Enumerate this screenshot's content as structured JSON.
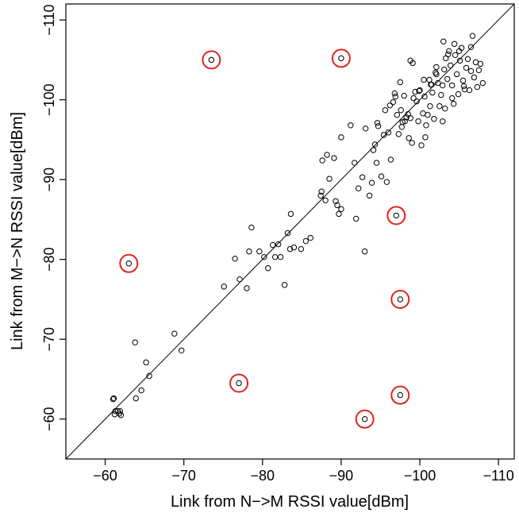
{
  "chart_data": {
    "type": "scatter",
    "title": "",
    "xlabel": "Link from N−>M RSSI value[dBm]",
    "ylabel": "Link from M−>N RSSI value[dBm]",
    "xlim": [
      -55,
      -112
    ],
    "ylim": [
      -55,
      -112
    ],
    "x_ticks": [
      {
        "value": -60,
        "label": "−60"
      },
      {
        "value": -70,
        "label": "−70"
      },
      {
        "value": -80,
        "label": "−80"
      },
      {
        "value": -90,
        "label": "−90"
      },
      {
        "value": -100,
        "label": "−100"
      },
      {
        "value": -110,
        "label": "−110"
      }
    ],
    "y_ticks": [
      {
        "value": -60,
        "label": "−60"
      },
      {
        "value": -70,
        "label": "−70"
      },
      {
        "value": -80,
        "label": "−80"
      },
      {
        "value": -90,
        "label": "−90"
      },
      {
        "value": -100,
        "label": "−100"
      },
      {
        "value": -110,
        "label": "−110"
      }
    ],
    "reference_line": "y = x",
    "grid": false,
    "point_color": "#000000",
    "highlight_color": "#e0241b",
    "points": [
      [
        -61.0,
        -62.5
      ],
      [
        -61.1,
        -62.6
      ],
      [
        -61.2,
        -60.6
      ],
      [
        -61.3,
        -61.0
      ],
      [
        -61.6,
        -61.0
      ],
      [
        -61.8,
        -60.7
      ],
      [
        -61.9,
        -61.0
      ],
      [
        -62.0,
        -60.5
      ],
      [
        -63.8,
        -69.6
      ],
      [
        -63.9,
        -62.6
      ],
      [
        -64.6,
        -63.6
      ],
      [
        -65.2,
        -67.1
      ],
      [
        -65.6,
        -65.4
      ],
      [
        -68.8,
        -70.7
      ],
      [
        -69.7,
        -68.6
      ],
      [
        -75.1,
        -76.6
      ],
      [
        -76.5,
        -80.1
      ],
      [
        -77.1,
        -77.5
      ],
      [
        -78.0,
        -76.4
      ],
      [
        -78.3,
        -81.0
      ],
      [
        -78.6,
        -84.0
      ],
      [
        -79.6,
        -81.0
      ],
      [
        -80.2,
        -80.3
      ],
      [
        -80.7,
        -78.9
      ],
      [
        -81.3,
        -81.8
      ],
      [
        -81.6,
        -80.3
      ],
      [
        -82.0,
        -81.9
      ],
      [
        -82.3,
        -80.3
      ],
      [
        -82.8,
        -76.8
      ],
      [
        -83.2,
        -83.3
      ],
      [
        -83.5,
        -81.3
      ],
      [
        -83.6,
        -85.7
      ],
      [
        -84.0,
        -81.5
      ],
      [
        -84.9,
        -81.3
      ],
      [
        -85.5,
        -82.3
      ],
      [
        -86.1,
        -82.7
      ],
      [
        -87.4,
        -88.0
      ],
      [
        -87.5,
        -88.5
      ],
      [
        -87.6,
        -92.4
      ],
      [
        -88.0,
        -87.4
      ],
      [
        -88.2,
        -93.1
      ],
      [
        -88.5,
        -90.1
      ],
      [
        -89.1,
        -92.7
      ],
      [
        -89.3,
        -87.3
      ],
      [
        -89.5,
        -86.8
      ],
      [
        -89.7,
        -85.7
      ],
      [
        -90.0,
        -86.3
      ],
      [
        -90.0,
        -95.3
      ],
      [
        -91.2,
        -96.8
      ],
      [
        -91.7,
        -92.1
      ],
      [
        -91.9,
        -85.1
      ],
      [
        -92.2,
        -88.9
      ],
      [
        -92.7,
        -90.3
      ],
      [
        -93.0,
        -81.0
      ],
      [
        -93.1,
        -96.4
      ],
      [
        -93.6,
        -88.0
      ],
      [
        -93.9,
        -89.6
      ],
      [
        -94.1,
        -93.7
      ],
      [
        -94.3,
        -94.4
      ],
      [
        -94.5,
        -92.1
      ],
      [
        -94.7,
        -96.7
      ],
      [
        -95.1,
        -90.4
      ],
      [
        -95.4,
        -95.6
      ],
      [
        -95.8,
        -89.7
      ],
      [
        -96.0,
        -95.9
      ],
      [
        -96.2,
        -99.3
      ],
      [
        -96.3,
        -92.5
      ],
      [
        -96.6,
        -99.7
      ],
      [
        -97.1,
        -98.1
      ],
      [
        -97.3,
        -95.7
      ],
      [
        -97.7,
        -96.6
      ],
      [
        -97.8,
        -97.2
      ],
      [
        -98.1,
        -97.3
      ],
      [
        -98.3,
        -97.8
      ],
      [
        -98.5,
        -98.2
      ],
      [
        -98.6,
        -95.2
      ],
      [
        -98.8,
        -97.7
      ],
      [
        -99.0,
        -94.6
      ],
      [
        -99.2,
        -100.2
      ],
      [
        -99.4,
        -101.0
      ],
      [
        -99.6,
        -99.8
      ],
      [
        -99.8,
        -97.3
      ],
      [
        -100.0,
        -101.2
      ],
      [
        -100.2,
        -94.3
      ],
      [
        -100.4,
        -98.3
      ],
      [
        -100.6,
        -100.4
      ],
      [
        -100.8,
        -96.8
      ],
      [
        -101.0,
        -98.1
      ],
      [
        -101.2,
        -102.5
      ],
      [
        -101.4,
        -101.9
      ],
      [
        -101.6,
        -100.9
      ],
      [
        -101.8,
        -97.6
      ],
      [
        -102.0,
        -103.4
      ],
      [
        -102.1,
        -104.1
      ],
      [
        -102.3,
        -102.1
      ],
      [
        -102.5,
        -99.2
      ],
      [
        -102.7,
        -100.6
      ],
      [
        -102.9,
        -101.8
      ],
      [
        -103.1,
        -103.8
      ],
      [
        -103.3,
        -105.2
      ],
      [
        -103.5,
        -102.6
      ],
      [
        -103.7,
        -106.1
      ],
      [
        -103.9,
        -104.3
      ],
      [
        -104.1,
        -101.8
      ],
      [
        -104.3,
        -99.5
      ],
      [
        -104.5,
        -105.6
      ],
      [
        -104.7,
        -103.2
      ],
      [
        -104.9,
        -100.7
      ],
      [
        -105.1,
        -104.9
      ],
      [
        -105.3,
        -106.5
      ],
      [
        -105.5,
        -102.4
      ],
      [
        -105.7,
        -101.3
      ],
      [
        -105.9,
        -104.0
      ],
      [
        -106.1,
        -105.1
      ],
      [
        -106.3,
        -101.2
      ],
      [
        -106.5,
        -103.6
      ],
      [
        -106.7,
        -108.0
      ],
      [
        -106.9,
        -102.8
      ],
      [
        -107.1,
        -104.7
      ],
      [
        -107.3,
        -101.6
      ],
      [
        -107.5,
        -103.7
      ],
      [
        -107.7,
        -104.5
      ],
      [
        -108.0,
        -102.1
      ],
      [
        -103.0,
        -107.3
      ],
      [
        -104.4,
        -107.0
      ],
      [
        -105.0,
        -106.1
      ],
      [
        -106.5,
        -106.6
      ],
      [
        -103.6,
        -105.7
      ],
      [
        -102.1,
        -103.2
      ],
      [
        -101.5,
        -101.9
      ],
      [
        -100.5,
        -102.5
      ],
      [
        -99.9,
        -101.1
      ],
      [
        -98.0,
        -100.5
      ],
      [
        -97.5,
        -102.2
      ],
      [
        -98.8,
        -104.9
      ],
      [
        -99.1,
        -104.6
      ],
      [
        -96.8,
        -100.8
      ],
      [
        -95.6,
        -98.7
      ],
      [
        -94.6,
        -97.1
      ],
      [
        -96.9,
        -100.4
      ],
      [
        -97.6,
        -98.7
      ],
      [
        -100.7,
        -95.3
      ],
      [
        -101.3,
        -99.2
      ],
      [
        -102.9,
        -97.3
      ],
      [
        -103.2,
        -98.9
      ],
      [
        -104.1,
        -100.2
      ],
      [
        -105.6,
        -101.7
      ]
    ],
    "highlighted": [
      [
        -73.5,
        -105.0
      ],
      [
        -90.0,
        -105.2
      ],
      [
        -63.0,
        -79.5
      ],
      [
        -97.0,
        -85.5
      ],
      [
        -97.5,
        -75.0
      ],
      [
        -77.0,
        -64.5
      ],
      [
        -97.5,
        -63.0
      ],
      [
        -93.0,
        -60.0
      ]
    ]
  }
}
